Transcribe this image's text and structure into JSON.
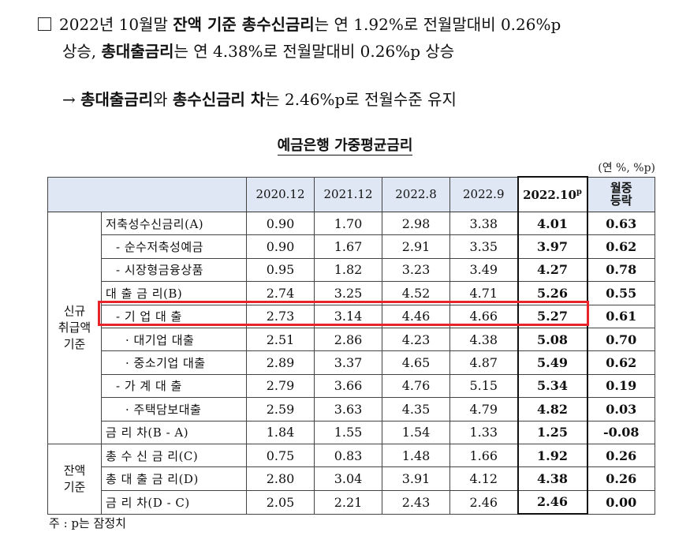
{
  "paragraph1": {
    "line1_a": "2022년 10월말 ",
    "line1_b": "잔액 기준 총수신금리",
    "line1_c": "는 연 1.92%로 전월말대비 0.26%p",
    "line2_a": "상승, ",
    "line2_b": "총대출금리",
    "line2_c": "는 연 4.38%로 전월말대비 0.26%p 상승"
  },
  "paragraph2": {
    "arrow": "→ ",
    "b1": "총대출금리",
    "t1": "와 ",
    "b2": "총수신금리 차",
    "t2": "는 2.46%p로 전월수준 유지"
  },
  "table": {
    "title": "예금은행 가중평균금리",
    "unit": "(연 %, %p)",
    "headers": [
      "2020.12",
      "2021.12",
      "2022.8",
      "2022.9",
      "2022.10",
      "월중\n등락"
    ],
    "highlight_sup": "p",
    "change_header_l1": "월중",
    "change_header_l2": "등락",
    "group1": "신규\n취급액\n기준",
    "group1_l1": "신규",
    "group1_l2": "취급액",
    "group1_l3": "기준",
    "group2_l1": "잔액",
    "group2_l2": "기준",
    "rows": [
      {
        "label": "저축성수신금리(A)",
        "v": [
          "0.90",
          "1.70",
          "2.98",
          "3.38",
          "4.01",
          "0.63"
        ]
      },
      {
        "label": "- 순수저축성예금",
        "v": [
          "0.90",
          "1.67",
          "2.91",
          "3.35",
          "3.97",
          "0.62"
        ]
      },
      {
        "label": "- 시장형금융상품",
        "v": [
          "0.95",
          "1.82",
          "3.23",
          "3.49",
          "4.27",
          "0.78"
        ]
      },
      {
        "label": "대 출 금 리(B)",
        "v": [
          "2.74",
          "3.25",
          "4.52",
          "4.71",
          "5.26",
          "0.55"
        ]
      },
      {
        "label": "- 기 업 대 출",
        "v": [
          "2.73",
          "3.14",
          "4.46",
          "4.66",
          "5.27",
          "0.61"
        ]
      },
      {
        "label": "· 대기업 대출",
        "v": [
          "2.51",
          "2.86",
          "4.23",
          "4.38",
          "5.08",
          "0.70"
        ]
      },
      {
        "label": "· 중소기업 대출",
        "v": [
          "2.89",
          "3.37",
          "4.65",
          "4.87",
          "5.49",
          "0.62"
        ]
      },
      {
        "label": "- 가 계 대 출",
        "v": [
          "2.79",
          "3.66",
          "4.76",
          "5.15",
          "5.34",
          "0.19"
        ]
      },
      {
        "label": "· 주택담보대출",
        "v": [
          "2.59",
          "3.63",
          "4.35",
          "4.79",
          "4.82",
          "0.03"
        ]
      },
      {
        "label": "금 리 차(B - A)",
        "v": [
          "1.84",
          "1.55",
          "1.54",
          "1.33",
          "1.25",
          "-0.08"
        ]
      },
      {
        "label": "총 수 신 금 리(C)",
        "v": [
          "0.75",
          "0.83",
          "1.48",
          "1.66",
          "1.92",
          "0.26"
        ]
      },
      {
        "label": "총 대 출 금 리(D)",
        "v": [
          "2.80",
          "3.04",
          "3.91",
          "4.12",
          "4.38",
          "0.26"
        ]
      },
      {
        "label": "금 리 차(D - C)",
        "v": [
          "2.05",
          "2.21",
          "2.43",
          "2.46",
          "2.46",
          "0.00"
        ]
      }
    ]
  },
  "note": "주 : p는 잠정치",
  "colors": {
    "header_bg": "#dfe7f4",
    "highlight_box": "#e8232a"
  }
}
